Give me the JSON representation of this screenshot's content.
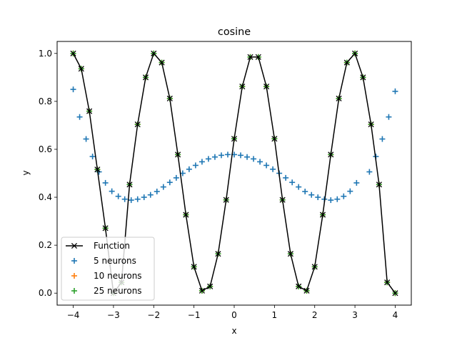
{
  "chart_data": {
    "type": "scatter",
    "title": "cosine",
    "xlabel": "x",
    "ylabel": "y",
    "xlim": [
      -4.4,
      4.4
    ],
    "ylim": [
      -0.05,
      1.05
    ],
    "xticks": [
      -4,
      -3,
      -2,
      -1,
      0,
      1,
      2,
      3,
      4
    ],
    "xtick_labels": [
      "−4",
      "−3",
      "−2",
      "−1",
      "0",
      "1",
      "2",
      "3",
      "4"
    ],
    "yticks": [
      0.0,
      0.2,
      0.4,
      0.6,
      0.8,
      1.0
    ],
    "ytick_labels": [
      "0.0",
      "0.2",
      "0.4",
      "0.6",
      "0.8",
      "1.0"
    ],
    "grid": false,
    "legend_position": "lower-left",
    "x": [
      -4.0,
      -3.8,
      -3.6,
      -3.4,
      -3.2,
      -3.0,
      -2.8,
      -2.6,
      -2.4,
      -2.2,
      -2.0,
      -1.8,
      -1.6,
      -1.4,
      -1.2,
      -1.0,
      -0.8,
      -0.6,
      -0.4,
      -0.2,
      0.0,
      0.2,
      0.4,
      0.6,
      0.8,
      1.0,
      1.2,
      1.4,
      1.6,
      1.8,
      2.0,
      2.2,
      2.4,
      2.6,
      2.8,
      3.0,
      3.2,
      3.4,
      3.6,
      3.8,
      4.0
    ],
    "series": [
      {
        "name": "Function",
        "style": "line-x",
        "color": "#000000",
        "values": [
          1.0,
          0.936,
          0.759,
          0.516,
          0.271,
          0.0,
          0.045,
          0.453,
          0.704,
          0.9,
          1.0,
          0.962,
          0.812,
          0.578,
          0.327,
          0.11,
          0.01,
          0.028,
          0.164,
          0.389,
          0.644,
          0.862,
          0.985,
          0.985,
          0.862,
          0.644,
          0.389,
          0.164,
          0.028,
          0.01,
          0.11,
          0.327,
          0.578,
          0.812,
          0.962,
          1.0,
          0.9,
          0.704,
          0.453,
          0.045,
          0.0
        ]
      },
      {
        "name": "5 neurons",
        "style": "plus",
        "color": "#1f77b4",
        "values": [
          0.85,
          0.735,
          0.643,
          0.57,
          0.506,
          0.46,
          0.425,
          0.404,
          0.392,
          0.388,
          0.392,
          0.4,
          0.41,
          0.424,
          0.443,
          0.462,
          0.481,
          0.5,
          0.517,
          0.533,
          0.548,
          0.56,
          0.568,
          0.575,
          0.578,
          0.578,
          0.575,
          0.568,
          0.56,
          0.548,
          0.533,
          0.517,
          0.5,
          0.481,
          0.462,
          0.443,
          0.424,
          0.41,
          0.4,
          0.392,
          0.388,
          0.392,
          0.404,
          0.425,
          0.46,
          0.506,
          0.57,
          0.643,
          0.735,
          0.842
        ],
        "x": [
          -4.0,
          -3.84,
          -3.68,
          -3.52,
          -3.36,
          -3.2,
          -3.04,
          -2.88,
          -2.72,
          -2.56,
          -2.4,
          -2.24,
          -2.08,
          -1.92,
          -1.76,
          -1.6,
          -1.44,
          -1.28,
          -1.12,
          -0.96,
          -0.8,
          -0.64,
          -0.48,
          -0.32,
          -0.16,
          0.0,
          0.16,
          0.32,
          0.48,
          0.64,
          0.8,
          0.96,
          1.12,
          1.28,
          1.44,
          1.6,
          1.76,
          1.92,
          2.08,
          2.24,
          2.4,
          2.56,
          2.72,
          2.88,
          3.04,
          3.36,
          3.52,
          3.68,
          3.84,
          4.0
        ]
      },
      {
        "name": "10 neurons",
        "style": "plus",
        "color": "#ff7f0e",
        "values": [
          1.0,
          0.936,
          0.759,
          0.516,
          0.271,
          0.0,
          0.045,
          0.453,
          0.704,
          0.9,
          1.0,
          0.962,
          0.812,
          0.578,
          0.327,
          0.11,
          0.01,
          0.028,
          0.164,
          0.389,
          0.644,
          0.862,
          0.985,
          0.985,
          0.862,
          0.644,
          0.389,
          0.164,
          0.028,
          0.01,
          0.11,
          0.327,
          0.578,
          0.812,
          0.962,
          1.0,
          0.9,
          0.704,
          0.453,
          0.045,
          0.0
        ]
      },
      {
        "name": "25 neurons",
        "style": "plus",
        "color": "#2ca02c",
        "values": [
          1.0,
          0.936,
          0.759,
          0.516,
          0.271,
          0.0,
          0.045,
          0.453,
          0.704,
          0.9,
          1.0,
          0.962,
          0.812,
          0.578,
          0.327,
          0.11,
          0.01,
          0.028,
          0.164,
          0.389,
          0.644,
          0.862,
          0.985,
          0.985,
          0.862,
          0.644,
          0.389,
          0.164,
          0.028,
          0.01,
          0.11,
          0.327,
          0.578,
          0.812,
          0.962,
          1.0,
          0.9,
          0.704,
          0.453,
          0.045,
          0.0
        ]
      }
    ]
  }
}
